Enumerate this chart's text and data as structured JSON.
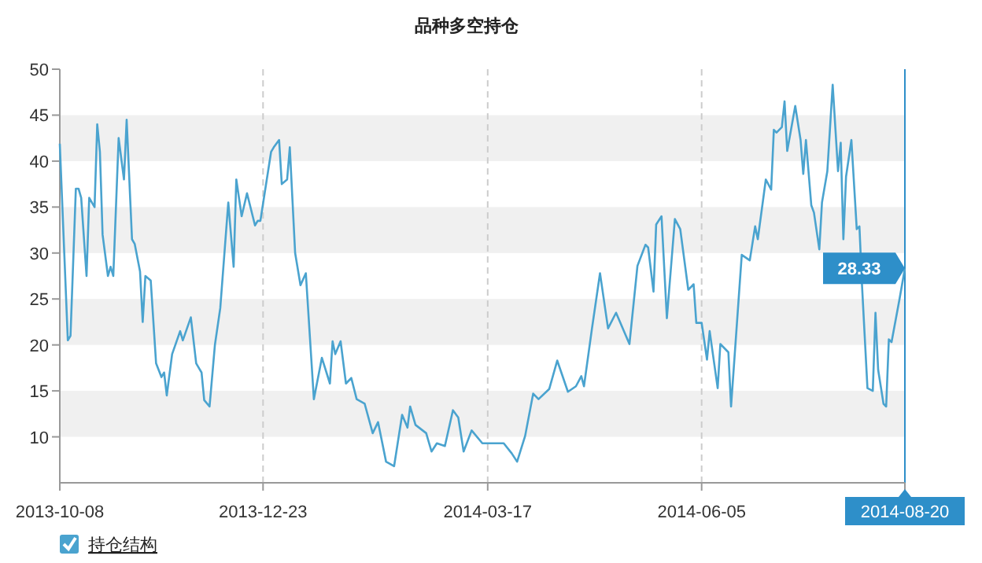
{
  "chart_data": {
    "type": "line",
    "title": "品种多空持仓",
    "x": [
      "2013-10-08",
      "2013-10-11",
      "2013-10-12",
      "2013-10-14",
      "2013-10-15",
      "2013-10-16",
      "2013-10-18",
      "2013-10-19",
      "2013-10-21",
      "2013-10-22",
      "2013-10-23",
      "2013-10-24",
      "2013-10-26",
      "2013-10-27",
      "2013-10-28",
      "2013-10-30",
      "2013-11-01",
      "2013-11-02",
      "2013-11-04",
      "2013-11-05",
      "2013-11-07",
      "2013-11-08",
      "2013-11-09",
      "2013-11-11",
      "2013-11-13",
      "2013-11-15",
      "2013-11-16",
      "2013-11-17",
      "2013-11-19",
      "2013-11-22",
      "2013-11-23",
      "2013-11-26",
      "2013-11-28",
      "2013-11-30",
      "2013-12-01",
      "2013-12-03",
      "2013-12-05",
      "2013-12-07",
      "2013-12-10",
      "2013-12-12",
      "2013-12-13",
      "2013-12-15",
      "2013-12-17",
      "2013-12-20",
      "2013-12-21",
      "2013-12-22",
      "2013-12-26",
      "2013-12-27",
      "2013-12-29",
      "2013-12-30",
      "2014-01-01",
      "2014-01-02",
      "2014-01-04",
      "2014-01-06",
      "2014-01-08",
      "2014-01-11",
      "2014-01-14",
      "2014-01-17",
      "2014-01-18",
      "2014-01-19",
      "2014-01-21",
      "2014-01-23",
      "2014-01-25",
      "2014-01-27",
      "2014-01-30",
      "2014-02-02",
      "2014-02-04",
      "2014-02-07",
      "2014-02-10",
      "2014-02-13",
      "2014-02-15",
      "2014-02-16",
      "2014-02-18",
      "2014-02-22",
      "2014-02-24",
      "2014-02-26",
      "2014-03-01",
      "2014-03-04",
      "2014-03-06",
      "2014-03-08",
      "2014-03-11",
      "2014-03-15",
      "2014-03-19",
      "2014-03-23",
      "2014-03-26",
      "2014-03-28",
      "2014-03-31",
      "2014-04-03",
      "2014-04-05",
      "2014-04-09",
      "2014-04-12",
      "2014-04-16",
      "2014-04-19",
      "2014-04-21",
      "2014-04-22",
      "2014-04-25",
      "2014-04-28",
      "2014-05-01",
      "2014-05-04",
      "2014-05-09",
      "2014-05-12",
      "2014-05-15",
      "2014-05-16",
      "2014-05-18",
      "2014-05-19",
      "2014-05-21",
      "2014-05-23",
      "2014-05-26",
      "2014-05-28",
      "2014-05-31",
      "2014-06-02",
      "2014-06-03",
      "2014-06-05",
      "2014-06-07",
      "2014-06-08",
      "2014-06-11",
      "2014-06-12",
      "2014-06-15",
      "2014-06-16",
      "2014-06-20",
      "2014-06-23",
      "2014-06-25",
      "2014-06-26",
      "2014-06-29",
      "2014-07-01",
      "2014-07-02",
      "2014-07-03",
      "2014-07-05",
      "2014-07-06",
      "2014-07-07",
      "2014-07-10",
      "2014-07-12",
      "2014-07-13",
      "2014-07-14",
      "2014-07-16",
      "2014-07-17",
      "2014-07-19",
      "2014-07-20",
      "2014-07-22",
      "2014-07-24",
      "2014-07-26",
      "2014-07-27",
      "2014-07-28",
      "2014-07-29",
      "2014-07-31",
      "2014-08-02",
      "2014-08-03",
      "2014-08-04",
      "2014-08-06",
      "2014-08-08",
      "2014-08-09",
      "2014-08-10",
      "2014-08-12",
      "2014-08-13",
      "2014-08-14",
      "2014-08-15",
      "2014-08-18",
      "2014-08-20"
    ],
    "series": [
      {
        "name": "持仓结构",
        "color": "#4aa3cf",
        "values": [
          41.9,
          20.5,
          21,
          37,
          37,
          36,
          27.5,
          36,
          35,
          44,
          41,
          32,
          27.5,
          28.5,
          27.5,
          42.5,
          38,
          44.5,
          31.5,
          31,
          28,
          22.5,
          27.5,
          27,
          18,
          16.5,
          17,
          14.5,
          19,
          21.5,
          20.5,
          23,
          18,
          17,
          14,
          13.3,
          20,
          24,
          35.5,
          28.5,
          38,
          34,
          36.5,
          33,
          33.5,
          33.5,
          41,
          41.5,
          42.3,
          37.5,
          38,
          41.5,
          30,
          26.5,
          27.8,
          14.1,
          18.6,
          15.8,
          20.4,
          19,
          20.4,
          15.8,
          16.4,
          14.1,
          13.6,
          10.4,
          11.6,
          7.3,
          6.8,
          12.4,
          11,
          13.3,
          11.3,
          10.4,
          8.4,
          9.3,
          9,
          12.9,
          12.1,
          8.4,
          10.7,
          9.3,
          9.3,
          9.3,
          8.2,
          7.3,
          10.1,
          14.7,
          14.1,
          15.2,
          18.3,
          14.9,
          15.5,
          16.6,
          15.5,
          21.8,
          27.8,
          21.8,
          23.5,
          20.1,
          28.6,
          30.9,
          30.6,
          25.8,
          33.1,
          34,
          22.9,
          33.7,
          32.6,
          26,
          26.6,
          22.4,
          22.4,
          18.4,
          21.5,
          15.3,
          20.1,
          19.2,
          13.3,
          29.8,
          29.2,
          32.9,
          31.5,
          38,
          36.9,
          43.4,
          43.1,
          43.7,
          46.5,
          41.1,
          46,
          42.3,
          38.6,
          42.3,
          35.2,
          34.4,
          30.4,
          35.5,
          38.9,
          48.3,
          38.9,
          42,
          31.5,
          38.3,
          42.3,
          32.6,
          32.9,
          26.3,
          15.3,
          15,
          23.5,
          17.3,
          13.6,
          13.3,
          20.6,
          20.3,
          25,
          28.33
        ]
      }
    ],
    "xlim": [
      "2013-10-08",
      "2014-08-20"
    ],
    "xticks": [
      "2013-10-08",
      "2013-12-23",
      "2014-03-17",
      "2014-06-05",
      "2014-08-20"
    ],
    "ylim": [
      5,
      50
    ],
    "yticks": [
      10,
      15,
      20,
      25,
      30,
      35,
      40,
      45,
      50
    ],
    "grid": true,
    "legend": "bottom left",
    "marker": "none",
    "line_style": "solid",
    "ref_lines": [
      {
        "axis": "x",
        "value": "2014-08-20",
        "color": "#2e8fc9"
      }
    ],
    "annotations": [
      {
        "text": "28.33",
        "x": "2014-08-20",
        "y": 28.33
      }
    ]
  }
}
